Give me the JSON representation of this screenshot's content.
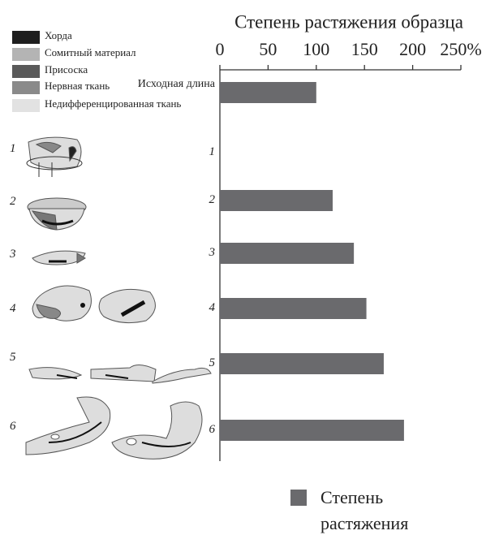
{
  "chart_data": {
    "type": "bar",
    "orientation": "horizontal",
    "title": "Степень растяжения образца",
    "categories": [
      "Исходная длина",
      "1",
      "2",
      "3",
      "4",
      "5",
      "6"
    ],
    "series": [
      {
        "name": "Степень растяжения",
        "color": "#6a6a6d",
        "values": [
          100,
          null,
          117,
          139,
          152,
          170,
          191
        ]
      }
    ],
    "xlim": [
      0,
      250
    ],
    "xticks": [
      0,
      50,
      100,
      150,
      200,
      {
        "value": 250,
        "label": "250%"
      }
    ]
  },
  "tissue_legend": [
    {
      "label": "Хорда",
      "color": "#1e1e1e"
    },
    {
      "label": "Сомитный материал",
      "color": "#b4b4b4"
    },
    {
      "label": "Присоска",
      "color": "#5a5a5a"
    },
    {
      "label": "Нервная ткань",
      "color": "#8a8a8a"
    },
    {
      "label": "Недифференцированная ткань",
      "color": "#e2e2e2"
    }
  ]
}
